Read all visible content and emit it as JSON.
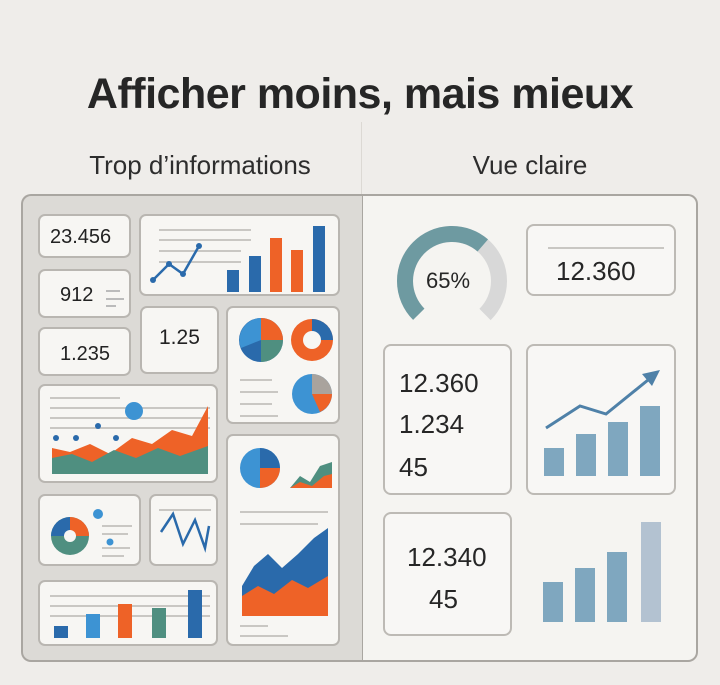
{
  "title": "Afficher moins, mais mieux",
  "left_panel": {
    "heading": "Trop d’informations",
    "kpis": {
      "k1": "23.456",
      "k2": "912",
      "k3": "1.235",
      "k4": "1.25"
    }
  },
  "right_panel": {
    "heading": "Vue claire",
    "gauge": {
      "value": 0.65,
      "label": "65%"
    },
    "kpi_top": "12.360",
    "stats1": [
      "12.360",
      "1.234",
      "45"
    ],
    "stats2": [
      "12.340",
      "45"
    ]
  },
  "colors": {
    "blue": "#2a6aab",
    "orange": "#ee6227",
    "teal": "#4f8f80",
    "lightblue": "#3d93d3",
    "muted_blue": "#7fa7bf",
    "muted_teal": "#6e9aa1",
    "gauge_track": "#d8d8d8"
  },
  "icons": [
    "arrow-up-icon"
  ]
}
